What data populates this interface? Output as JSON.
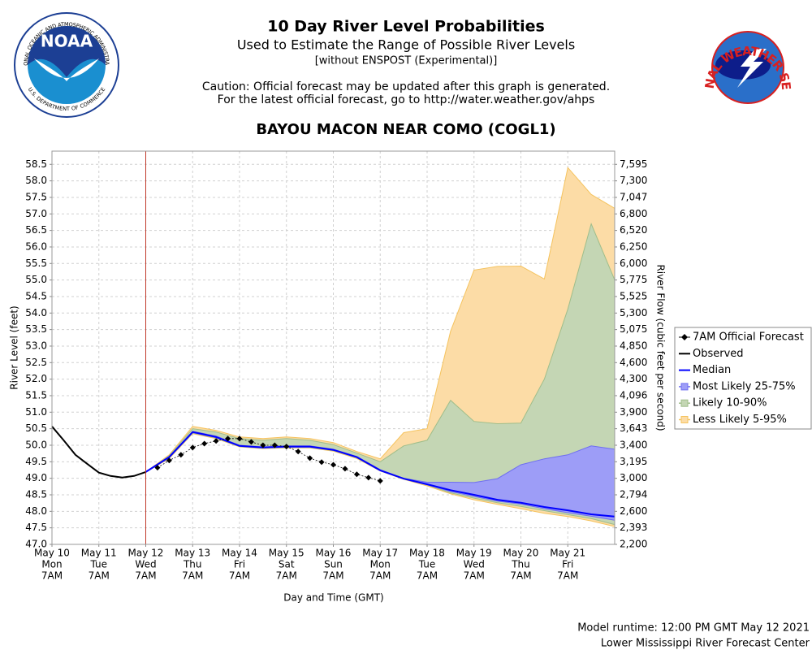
{
  "chart_data": {
    "type": "line",
    "title": "10 Day River Level Probabilities",
    "subtitle": "Used to Estimate the Range of Possible River Levels",
    "note": "[without ENSPOST (Experimental)]",
    "caution": [
      "Caution: Official forecast may be updated after this graph is generated.",
      "For the latest official forecast, go to http://water.weather.gov/ahps"
    ],
    "station": "BAYOU MACON NEAR COMO (COGL1)",
    "ylabel": "River Level (feet)",
    "y2label": "River Flow (cubic feet per second)",
    "xlabel": "Day and Time (GMT)",
    "footer": [
      "Model runtime: 12:00 PM GMT May 12 2021",
      "Lower Mississippi River Forecast Center"
    ],
    "logos": {
      "noaa": "NOAA",
      "noaa_ring": "NATIONAL OCEANIC AND ATMOSPHERIC ADMINISTRATION",
      "noaa_ring_bottom": "U.S. DEPARTMENT OF COMMERCE",
      "nws_ring": "NATIONAL WEATHER SERVICE"
    },
    "grid": true,
    "analysis_time_x": 2,
    "xlim": [
      0,
      12
    ],
    "xticks": [
      {
        "value": 0,
        "label": "May 10"
      },
      {
        "value": 1,
        "label": "May 11"
      },
      {
        "value": 2,
        "label": "May 12"
      },
      {
        "value": 3,
        "label": "May 13"
      },
      {
        "value": 4,
        "label": "May 14"
      },
      {
        "value": 5,
        "label": "May 15"
      },
      {
        "value": 6,
        "label": "May 16"
      },
      {
        "value": 7,
        "label": "May 17"
      },
      {
        "value": 8,
        "label": "May 18"
      },
      {
        "value": 9,
        "label": "May 19"
      },
      {
        "value": 10,
        "label": "May 20"
      },
      {
        "value": 11,
        "label": "May 21"
      }
    ],
    "xtick_days": [
      "Mon",
      "Tue",
      "Wed",
      "Thu",
      "Fri",
      "Sat",
      "Sun",
      "Mon",
      "Tue",
      "Wed",
      "Thu",
      "Fri"
    ],
    "xtick_times": [
      "7AM",
      "7AM",
      "7AM",
      "7AM",
      "7AM",
      "7AM",
      "7AM",
      "7AM",
      "7AM",
      "7AM",
      "7AM",
      "7AM"
    ],
    "ylim": [
      47,
      58.9
    ],
    "yticks": [
      {
        "value": 47,
        "label": "47.0"
      },
      47.5,
      {
        "value": 48,
        "label": "48.0"
      },
      48.5,
      {
        "value": 49,
        "label": "49.0"
      },
      49.5,
      {
        "value": 50,
        "label": "50.0"
      },
      50.5,
      {
        "value": 51,
        "label": "51.0"
      },
      51.5,
      {
        "value": 52,
        "label": "52.0"
      },
      52.5,
      {
        "value": 53,
        "label": "53.0"
      },
      53.5,
      {
        "value": 54,
        "label": "54.0"
      },
      54.5,
      {
        "value": 55,
        "label": "55.0"
      },
      55.5,
      {
        "value": 56,
        "label": "56.0"
      },
      56.5,
      {
        "value": 57,
        "label": "57.0"
      },
      57.5,
      {
        "value": 58,
        "label": "58.0"
      },
      58.5
    ],
    "y2ticks": [
      {
        "value": 2200,
        "label": "2,200"
      },
      {
        "value": 2393,
        "label": "2,393"
      },
      {
        "value": 2600,
        "label": "2,600"
      },
      {
        "value": 2794,
        "label": "2,794"
      },
      {
        "value": 3000,
        "label": "3,000"
      },
      {
        "value": 3195,
        "label": "3,195"
      },
      {
        "value": 3400,
        "label": "3,400"
      },
      {
        "value": 3643,
        "label": "3,643"
      },
      {
        "value": 3900,
        "label": "3,900"
      },
      {
        "value": 4096,
        "label": "4,096"
      },
      {
        "value": 4300,
        "label": "4,300"
      },
      {
        "value": 4600,
        "label": "4,600"
      },
      {
        "value": 4850,
        "label": "4,850"
      },
      {
        "value": 5075,
        "label": "5,075"
      },
      {
        "value": 5300,
        "label": "5,300"
      },
      {
        "value": 5525,
        "label": "5,525"
      },
      {
        "value": 5775,
        "label": "5,775"
      },
      {
        "value": 6000,
        "label": "6,000"
      },
      {
        "value": 6250,
        "label": "6,250"
      },
      {
        "value": 6520,
        "label": "6,520"
      },
      {
        "value": 6800,
        "label": "6,800"
      },
      {
        "value": 7047,
        "label": "7,047"
      },
      {
        "value": 7300,
        "label": "7,300"
      },
      {
        "value": 7595,
        "label": "7,595"
      }
    ],
    "series": [
      {
        "name": "7AM Official Forecast",
        "style": "marker",
        "color": "#000000",
        "x": [
          2.25,
          2.5,
          2.75,
          3,
          3.25,
          3.5,
          3.75,
          4,
          4.25,
          4.5,
          4.75,
          5,
          5.25,
          5.5,
          5.75,
          6,
          6.25,
          6.5,
          6.75,
          7
        ],
        "values": [
          49.32,
          49.54,
          49.71,
          49.93,
          50.05,
          50.13,
          50.2,
          50.2,
          50.1,
          50.0,
          50.0,
          49.96,
          49.81,
          49.61,
          49.49,
          49.41,
          49.29,
          49.12,
          49.02,
          48.92
        ]
      },
      {
        "name": "Observed",
        "style": "line",
        "color": "#000000",
        "x": [
          0,
          0.25,
          0.5,
          0.75,
          1,
          1.25,
          1.5,
          1.75,
          2
        ],
        "values": [
          50.57,
          50.15,
          49.71,
          49.44,
          49.17,
          49.07,
          49.02,
          49.07,
          49.19
        ]
      },
      {
        "name": "Median",
        "style": "line",
        "color": "#0000ff",
        "x": [
          2,
          2.5,
          3,
          3.5,
          4,
          4.5,
          5,
          5.5,
          6,
          6.5,
          7,
          7.5,
          8,
          8.5,
          9,
          9.5,
          10,
          10.5,
          11,
          11.5,
          12
        ],
        "values": [
          49.19,
          49.64,
          50.4,
          50.25,
          49.98,
          49.93,
          49.96,
          49.96,
          49.86,
          49.64,
          49.24,
          48.99,
          48.82,
          48.64,
          48.5,
          48.35,
          48.26,
          48.13,
          48.03,
          47.91,
          47.84
        ]
      },
      {
        "name": "Most Likely 25-75%",
        "style": "band",
        "color": "#9d9df7",
        "edge_color": "#6e6ef0",
        "x": [
          2,
          2.5,
          3,
          3.5,
          4,
          4.5,
          5,
          5.5,
          6,
          6.5,
          7,
          7.5,
          8,
          8.5,
          9,
          9.5,
          10,
          10.5,
          11,
          11.5,
          12
        ],
        "values": [
          49.2,
          49.66,
          50.42,
          50.28,
          50.0,
          49.95,
          49.98,
          49.98,
          49.88,
          49.66,
          49.26,
          49.0,
          48.88,
          48.88,
          48.87,
          48.99,
          49.41,
          49.59,
          49.71,
          49.98,
          49.88
        ],
        "low": [
          49.19,
          49.63,
          50.38,
          50.23,
          49.97,
          49.92,
          49.94,
          49.94,
          49.85,
          49.63,
          49.23,
          48.98,
          48.8,
          48.6,
          48.45,
          48.31,
          48.22,
          48.08,
          47.96,
          47.85,
          47.73
        ]
      },
      {
        "name": "Likely 10-90%",
        "style": "band",
        "color": "#c4d6b4",
        "edge_color": "#9fbd8a",
        "x": [
          2,
          2.5,
          3,
          3.5,
          4,
          4.5,
          5,
          5.5,
          6,
          6.5,
          7,
          7.5,
          8,
          8.5,
          9,
          9.5,
          10,
          10.5,
          11,
          11.5,
          12
        ],
        "values": [
          49.19,
          49.68,
          50.5,
          50.4,
          50.2,
          50.15,
          50.2,
          50.15,
          50.02,
          49.76,
          49.5,
          49.98,
          50.15,
          51.36,
          50.72,
          50.65,
          50.67,
          52.0,
          54.12,
          56.7,
          55.0
        ],
        "low": [
          49.19,
          49.62,
          50.37,
          50.22,
          49.96,
          49.91,
          49.93,
          49.93,
          49.84,
          49.62,
          49.23,
          48.98,
          48.8,
          48.56,
          48.4,
          48.26,
          48.15,
          48.02,
          47.9,
          47.78,
          47.6
        ]
      },
      {
        "name": "Less Likely 5-95%",
        "style": "band",
        "color": "#fcdca6",
        "edge_color": "#f5c35e",
        "x": [
          2,
          2.5,
          3,
          3.5,
          4,
          4.5,
          5,
          5.5,
          6,
          6.5,
          7,
          7.5,
          8,
          8.5,
          9,
          9.5,
          10,
          10.5,
          11,
          11.5,
          12
        ],
        "values": [
          49.19,
          49.71,
          50.57,
          50.45,
          50.25,
          50.2,
          50.25,
          50.2,
          50.08,
          49.81,
          49.59,
          50.38,
          50.5,
          53.45,
          55.3,
          55.41,
          55.42,
          55.03,
          58.4,
          57.59,
          57.17
        ],
        "low": [
          49.19,
          49.6,
          50.35,
          50.2,
          49.95,
          49.9,
          49.92,
          49.92,
          49.82,
          49.6,
          49.22,
          48.97,
          48.77,
          48.53,
          48.35,
          48.21,
          48.08,
          47.94,
          47.84,
          47.71,
          47.54
        ]
      }
    ]
  }
}
